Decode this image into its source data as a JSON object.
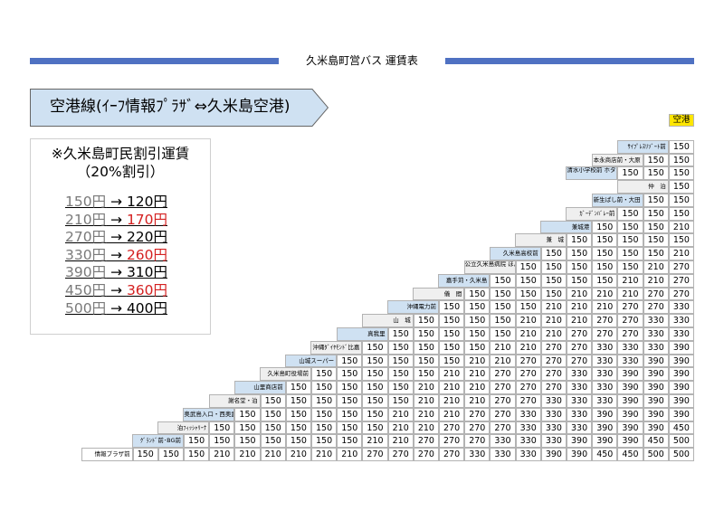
{
  "header": {
    "title": "久米島町営バス 運賃表"
  },
  "route": {
    "label": "空港線(ｲｰﾌ情報ﾌﾟﾗｻﾞ⇔久米島空港)"
  },
  "discount": {
    "title": "※久米島町民割引運賃",
    "subtitle": "（20%割引）",
    "rows": [
      {
        "from": "150円",
        "arrow": "→",
        "to": "120円",
        "highlight": false
      },
      {
        "from": "210円",
        "arrow": "→",
        "to": "170円",
        "highlight": true
      },
      {
        "from": "270円",
        "arrow": "→",
        "to": "220円",
        "highlight": false
      },
      {
        "from": "330円",
        "arrow": "→",
        "to": "260円",
        "highlight": true
      },
      {
        "from": "390円",
        "arrow": "→",
        "to": "310円",
        "highlight": false
      },
      {
        "from": "450円",
        "arrow": "→",
        "to": "360円",
        "highlight": true
      },
      {
        "from": "500円",
        "arrow": "→",
        "to": "400円",
        "highlight": false
      }
    ]
  },
  "colors": {
    "accent_bar": "#4f71c2",
    "stop_fill_a": "#cfe1f2",
    "stop_fill_b": "#efefef",
    "airport_fill": "#ffe600",
    "discount_red": "#d42020"
  },
  "fare_table": {
    "terminal": "空港",
    "stops": [
      {
        "name": "情報プラザ前",
        "fares": [
          "150",
          "150",
          "150",
          "210",
          "210",
          "210",
          "210",
          "210",
          "210",
          "270",
          "270",
          "270",
          "270",
          "330",
          "330",
          "330",
          "390",
          "390",
          "450",
          "450",
          "500",
          "500"
        ]
      },
      {
        "name": "ｸﾞﾗﾝﾄﾞ前･BG前",
        "fares": [
          "150",
          "150",
          "150",
          "150",
          "150",
          "150",
          "150",
          "210",
          "210",
          "270",
          "270",
          "270",
          "330",
          "330",
          "330",
          "390",
          "390",
          "390",
          "450",
          "500"
        ]
      },
      {
        "name": "泊ﾌｨｯｼｬﾘｰﾅ",
        "fares": [
          "150",
          "150",
          "150",
          "150",
          "150",
          "150",
          "150",
          "210",
          "210",
          "270",
          "270",
          "270",
          "330",
          "330",
          "330",
          "390",
          "390",
          "390",
          "450"
        ]
      },
      {
        "name": "奥武島入口・西奥武",
        "fares": [
          "150",
          "150",
          "150",
          "150",
          "150",
          "150",
          "210",
          "210",
          "210",
          "270",
          "270",
          "330",
          "330",
          "330",
          "390",
          "390",
          "390",
          "390"
        ]
      },
      {
        "name": "謝名堂・泊",
        "fares": [
          "150",
          "150",
          "150",
          "150",
          "150",
          "150",
          "210",
          "210",
          "210",
          "270",
          "270",
          "330",
          "330",
          "330",
          "390",
          "390",
          "390"
        ]
      },
      {
        "name": "山里商店前",
        "fares": [
          "150",
          "150",
          "150",
          "150",
          "150",
          "210",
          "210",
          "210",
          "270",
          "270",
          "270",
          "330",
          "330",
          "390",
          "390",
          "390"
        ]
      },
      {
        "name": "久米島町役場前",
        "fares": [
          "150",
          "150",
          "150",
          "150",
          "150",
          "210",
          "210",
          "270",
          "270",
          "270",
          "330",
          "330",
          "390",
          "390",
          "390"
        ]
      },
      {
        "name": "山城スーパー",
        "fares": [
          "150",
          "150",
          "150",
          "150",
          "150",
          "210",
          "210",
          "270",
          "270",
          "270",
          "330",
          "330",
          "390",
          "390"
        ]
      },
      {
        "name": "沖縄ﾀﾞｲﾔﾓﾝﾄﾞ比嘉",
        "fares": [
          "150",
          "150",
          "150",
          "150",
          "150",
          "210",
          "210",
          "270",
          "270",
          "330",
          "330",
          "330",
          "390"
        ]
      },
      {
        "name": "真我里",
        "fares": [
          "150",
          "150",
          "150",
          "150",
          "150",
          "210",
          "210",
          "270",
          "270",
          "270",
          "330",
          "330"
        ]
      },
      {
        "name": "山　城",
        "fares": [
          "150",
          "150",
          "150",
          "150",
          "210",
          "210",
          "210",
          "270",
          "270",
          "330",
          "330"
        ]
      },
      {
        "name": "沖縄電力前",
        "fares": [
          "150",
          "150",
          "150",
          "150",
          "210",
          "210",
          "210",
          "270",
          "270",
          "330"
        ]
      },
      {
        "name": "儀　間",
        "fares": [
          "150",
          "150",
          "150",
          "150",
          "210",
          "210",
          "210",
          "270",
          "270"
        ]
      },
      {
        "name": "嘉手苅・久米島",
        "fares": [
          "150",
          "150",
          "150",
          "150",
          "150",
          "210",
          "210",
          "270"
        ]
      },
      {
        "name": "公立久米島病院 ほんのもり",
        "fares": [
          "150",
          "150",
          "150",
          "150",
          "150",
          "210",
          "270"
        ]
      },
      {
        "name": "久米島高校前",
        "fares": [
          "150",
          "150",
          "150",
          "150",
          "150",
          "210"
        ]
      },
      {
        "name": "兼　城",
        "fares": [
          "150",
          "150",
          "150",
          "150",
          "150"
        ]
      },
      {
        "name": "兼城港",
        "fares": [
          "150",
          "150",
          "150",
          "210"
        ]
      },
      {
        "name": "ｶﾞｰﾃﾞﾝﾊﾞﾚｰ前",
        "fares": [
          "150",
          "150",
          "150"
        ]
      },
      {
        "name": "新生ぱし前・大田",
        "fares": [
          "150",
          "150"
        ]
      },
      {
        "name": "仲　泊",
        "fares": [
          "150"
        ]
      },
      {
        "name": "清水小学校前 ホタルドーム",
        "fares": [
          "150",
          "150",
          "150"
        ]
      },
      {
        "name": "本永商店前・大原",
        "fares": [
          "150",
          "150"
        ]
      },
      {
        "name": "ｻｲﾌﾟﾚｽﾘｿﾞｰﾄ前",
        "fares": [
          "150"
        ]
      }
    ]
  }
}
